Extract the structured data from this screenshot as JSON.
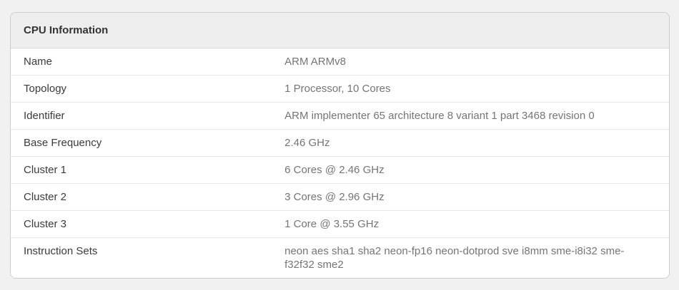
{
  "card": {
    "title": "CPU Information",
    "rows": [
      {
        "label": "Name",
        "value": "ARM ARMv8"
      },
      {
        "label": "Topology",
        "value": "1 Processor, 10 Cores"
      },
      {
        "label": "Identifier",
        "value": "ARM implementer 65 architecture 8 variant 1 part 3468 revision 0"
      },
      {
        "label": "Base Frequency",
        "value": "2.46 GHz"
      },
      {
        "label": "Cluster 1",
        "value": "6 Cores @ 2.46 GHz"
      },
      {
        "label": "Cluster 2",
        "value": "3 Cores @ 2.96 GHz"
      },
      {
        "label": "Cluster 3",
        "value": "1 Core @ 3.55 GHz"
      },
      {
        "label": "Instruction Sets",
        "value": "neon aes sha1 sha2 neon-fp16 neon-dotprod sve i8mm sme-i8i32 sme-f32f32 sme2"
      }
    ],
    "colors": {
      "page_background": "#f1f1f1",
      "card_background": "#ffffff",
      "header_background": "#eeeeee",
      "card_border": "#cccccc",
      "row_separator": "#e7e7e7",
      "label_text": "#3b3b3b",
      "value_text": "#757575",
      "header_text": "#333333"
    }
  }
}
